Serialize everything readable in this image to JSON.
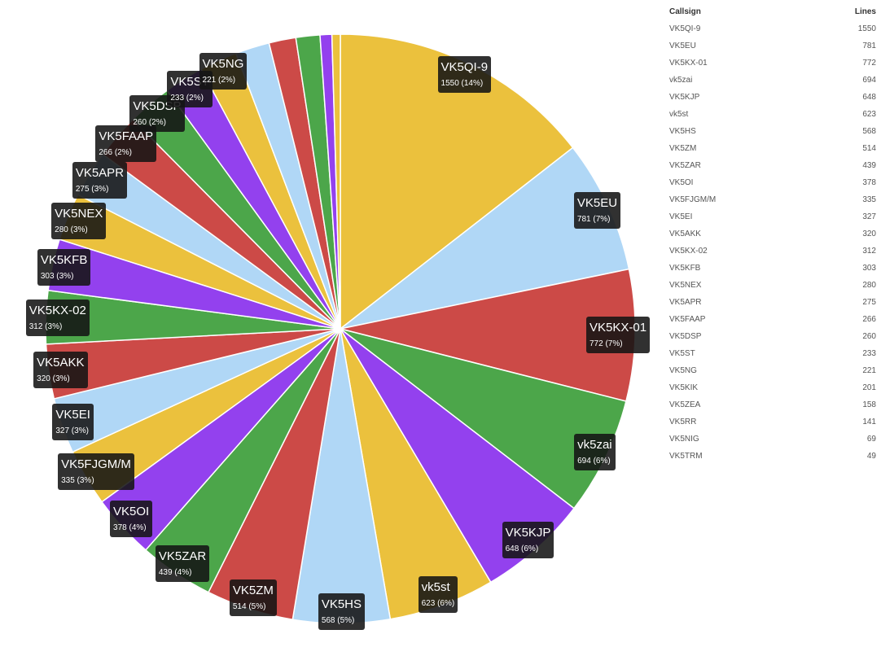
{
  "chart_data": {
    "type": "pie",
    "colors": [
      "#ebc13d",
      "#b0d7f6",
      "#cc4a47",
      "#4ca64a",
      "#9341ee"
    ],
    "legend_placement": "right",
    "slices": [
      {
        "label": "VK5QI-9",
        "value": 1550,
        "text": "1550 (14%)"
      },
      {
        "label": "VK5EU",
        "value": 781,
        "text": "781 (7%)"
      },
      {
        "label": "VK5KX-01",
        "value": 772,
        "text": "772 (7%)"
      },
      {
        "label": "vk5zai",
        "value": 694,
        "text": "694 (6%)"
      },
      {
        "label": "VK5KJP",
        "value": 648,
        "text": "648 (6%)"
      },
      {
        "label": "vk5st",
        "value": 623,
        "text": "623 (6%)"
      },
      {
        "label": "VK5HS",
        "value": 568,
        "text": "568 (5%)"
      },
      {
        "label": "VK5ZM",
        "value": 514,
        "text": "514 (5%)"
      },
      {
        "label": "VK5ZAR",
        "value": 439,
        "text": "439 (4%)"
      },
      {
        "label": "VK5OI",
        "value": 378,
        "text": "378 (4%)"
      },
      {
        "label": "VK5FJGM/M",
        "value": 335,
        "text": "335 (3%)"
      },
      {
        "label": "VK5EI",
        "value": 327,
        "text": "327 (3%)"
      },
      {
        "label": "VK5AKK",
        "value": 320,
        "text": "320 (3%)"
      },
      {
        "label": "VK5KX-02",
        "value": 312,
        "text": "312 (3%)"
      },
      {
        "label": "VK5KFB",
        "value": 303,
        "text": "303 (3%)"
      },
      {
        "label": "VK5NEX",
        "value": 280,
        "text": "280 (3%)"
      },
      {
        "label": "VK5APR",
        "value": 275,
        "text": "275 (3%)"
      },
      {
        "label": "VK5FAAP",
        "value": 266,
        "text": "266 (2%)"
      },
      {
        "label": "VK5DSP",
        "value": 260,
        "text": "260 (2%)"
      },
      {
        "label": "VK5ST",
        "value": 233,
        "text": "233 (2%)"
      },
      {
        "label": "VK5NG",
        "value": 221,
        "text": "221 (2%)"
      },
      {
        "label": "VK5KIK",
        "value": 201
      },
      {
        "label": "VK5ZEA",
        "value": 158
      },
      {
        "label": "VK5RR",
        "value": 141
      },
      {
        "label": "VK5NIG",
        "value": 69
      },
      {
        "label": "VK5TRM",
        "value": 49
      }
    ]
  },
  "table": {
    "col_callsign": "Callsign",
    "col_lines": "Lines",
    "rows": [
      {
        "callsign": "VK5QI-9",
        "lines": "1550"
      },
      {
        "callsign": "VK5EU",
        "lines": "781"
      },
      {
        "callsign": "VK5KX-01",
        "lines": "772"
      },
      {
        "callsign": "vk5zai",
        "lines": "694"
      },
      {
        "callsign": "VK5KJP",
        "lines": "648"
      },
      {
        "callsign": "vk5st",
        "lines": "623"
      },
      {
        "callsign": "VK5HS",
        "lines": "568"
      },
      {
        "callsign": "VK5ZM",
        "lines": "514"
      },
      {
        "callsign": "VK5ZAR",
        "lines": "439"
      },
      {
        "callsign": "VK5OI",
        "lines": "378"
      },
      {
        "callsign": "VK5FJGM/M",
        "lines": "335"
      },
      {
        "callsign": "VK5EI",
        "lines": "327"
      },
      {
        "callsign": "VK5AKK",
        "lines": "320"
      },
      {
        "callsign": "VK5KX-02",
        "lines": "312"
      },
      {
        "callsign": "VK5KFB",
        "lines": "303"
      },
      {
        "callsign": "VK5NEX",
        "lines": "280"
      },
      {
        "callsign": "VK5APR",
        "lines": "275"
      },
      {
        "callsign": "VK5FAAP",
        "lines": "266"
      },
      {
        "callsign": "VK5DSP",
        "lines": "260"
      },
      {
        "callsign": "VK5ST",
        "lines": "233"
      },
      {
        "callsign": "VK5NG",
        "lines": "221"
      },
      {
        "callsign": "VK5KIK",
        "lines": "201"
      },
      {
        "callsign": "VK5ZEA",
        "lines": "158"
      },
      {
        "callsign": "VK5RR",
        "lines": "141"
      },
      {
        "callsign": "VK5NIG",
        "lines": "69"
      },
      {
        "callsign": "VK5TRM",
        "lines": "49"
      }
    ]
  }
}
